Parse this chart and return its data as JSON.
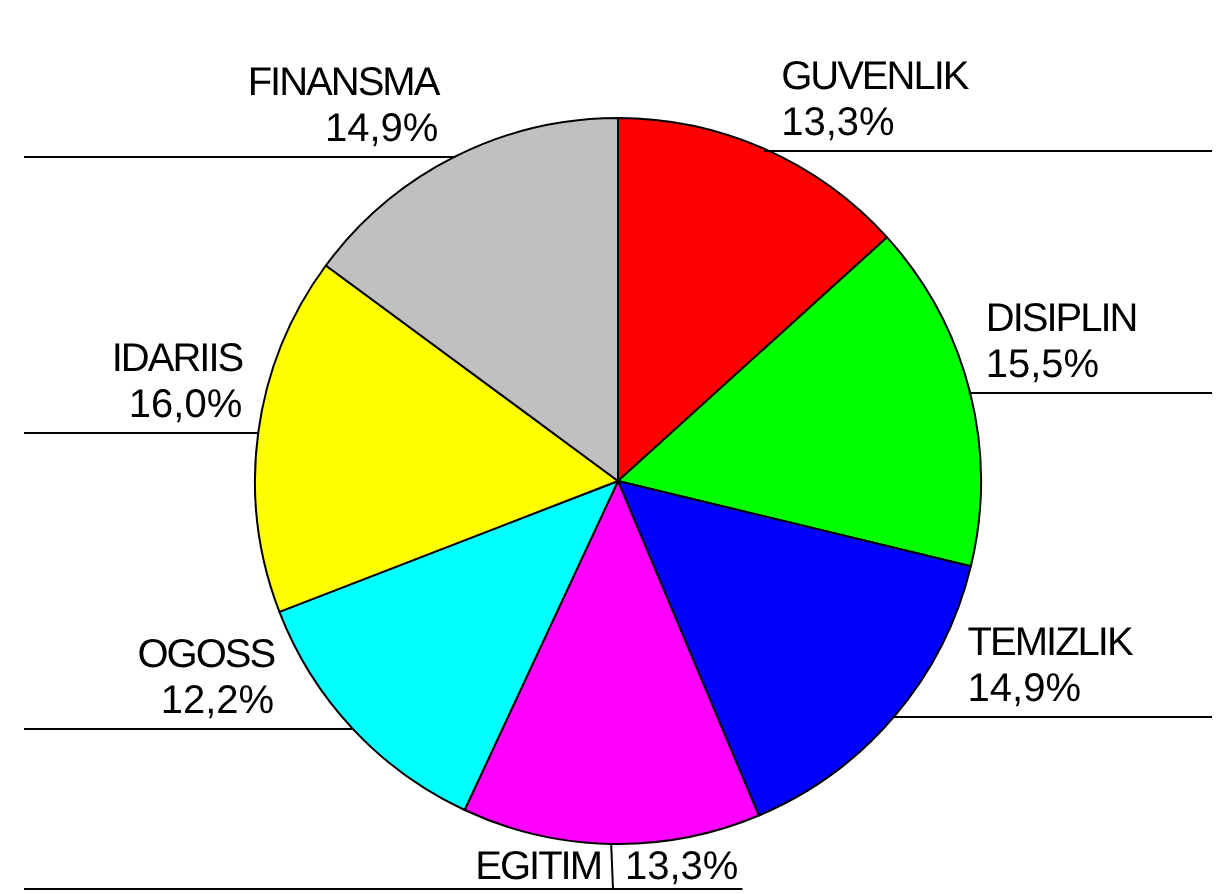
{
  "chart_data": {
    "type": "pie",
    "categories": [
      "GUVENLIK",
      "DISIPLIN",
      "TEMIZLIK",
      "EGITIM",
      "OGOSS",
      "IDARIIS",
      "FINANSMA"
    ],
    "values": [
      13.3,
      15.5,
      14.9,
      13.3,
      12.2,
      16.0,
      14.9
    ],
    "colors": [
      "#ff0000",
      "#00ff00",
      "#0000ff",
      "#ff00ff",
      "#00ffff",
      "#ffff00",
      "#c0c0c0"
    ],
    "value_labels": [
      "13,3%",
      "15,5%",
      "14,9%",
      "13,3%",
      "12,2%",
      "16,0%",
      "14,9%"
    ]
  }
}
